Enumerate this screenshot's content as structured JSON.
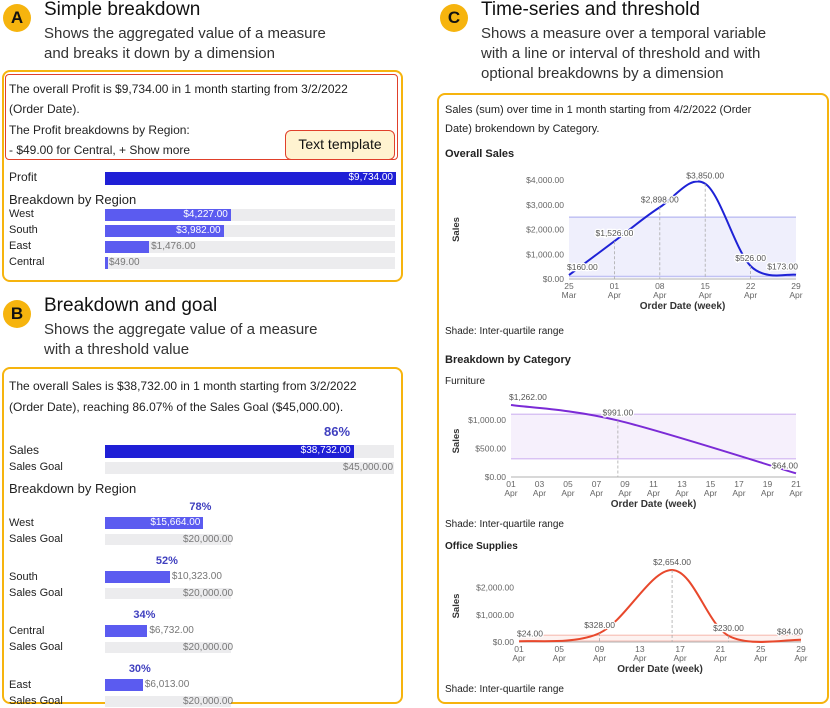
{
  "colors": {
    "accent": "#F6B40E",
    "bar_main": "#1F1FD6",
    "bar_sub": "#5B5BF0",
    "template_border": "#E0402A",
    "line_total": "#1E22D6",
    "line_furniture": "#7B2BD6",
    "line_office": "#E8482C"
  },
  "section_a": {
    "badge": "A",
    "title": "Simple breakdown",
    "desc1": "Shows the aggregated value of a measure",
    "desc2": "and breaks it down by a dimension",
    "text1": "The overall Profit is $9,734.00 in 1 month starting from 3/2/2022",
    "text2": "(Order Date).",
    "text3": "The Profit breakdowns by Region:",
    "text4": "- $49.00 for Central,   +  Show more",
    "template_label": "Text template",
    "measure_label": "Profit",
    "measure_value": "$9,734.00",
    "breakdown_title": "Breakdown by Region",
    "regions": [
      {
        "name": "West",
        "value": "$4,227.00",
        "frac": 0.434
      },
      {
        "name": "South",
        "value": "$3,982.00",
        "frac": 0.409
      },
      {
        "name": "East",
        "value": "$1,476.00",
        "frac": 0.152
      },
      {
        "name": "Central",
        "value": "$49.00",
        "frac": 0.005
      }
    ]
  },
  "section_b": {
    "badge": "B",
    "title": "Breakdown and goal",
    "desc1": "Shows the aggregate value of a measure",
    "desc2": "with a threshold value",
    "text1": "The overall Sales is $38,732.00 in 1 month starting from 3/2/2022",
    "text2": "(Order Date), reaching 86.07% of the Sales Goal ($45,000.00).",
    "overall_pct": "86%",
    "overall_frac": 0.8607,
    "sales_label": "Sales",
    "sales_value": "$38,732.00",
    "goal_label": "Sales Goal",
    "goal_value": "$45,000.00",
    "breakdown_title": "Breakdown by Region",
    "regions": [
      {
        "name": "West",
        "pct": "78%",
        "frac": 0.783,
        "value": "$15,664.00",
        "goal_label": "Sales Goal",
        "goal": "$20,000.00"
      },
      {
        "name": "South",
        "pct": "52%",
        "frac": 0.516,
        "value": "$10,323.00",
        "goal_label": "Sales Goal",
        "goal": "$20,000.00"
      },
      {
        "name": "Central",
        "pct": "34%",
        "frac": 0.337,
        "value": "$6,732.00",
        "goal_label": "Sales Goal",
        "goal": "$20,000.00"
      },
      {
        "name": "East",
        "pct": "30%",
        "frac": 0.301,
        "value": "$6,013.00",
        "goal_label": "Sales Goal",
        "goal": "$20,000.00"
      }
    ]
  },
  "section_c": {
    "badge": "C",
    "title": "Time-series and threshold",
    "desc1": "Shows a measure over a temporal variable",
    "desc2": "with a line or interval of threshold and with",
    "desc3": "optional breakdowns by a dimension",
    "text1": "Sales (sum) over time in 1 month starting from 4/2/2022 (Order",
    "text2": "Date) brokendown by Category.",
    "overall_title": "Overall Sales",
    "shade_note": "Shade: Inter-quartile range",
    "breakdown_title": "Breakdown by Category",
    "x_title": "Order Date (week)"
  },
  "chart_data": [
    {
      "type": "line",
      "title": "Overall Sales",
      "xlabel": "Order Date (week)",
      "ylabel": "Sales",
      "ylim": [
        0,
        4000
      ],
      "yticks": [
        "$4,000.00",
        "$3,000.00",
        "$2,000.00",
        "$1,000.00",
        "$0.00"
      ],
      "ytick_values": [
        4000,
        3000,
        2000,
        1000,
        0
      ],
      "x": [
        0,
        1,
        2,
        3,
        4,
        5
      ],
      "xlim": [
        0,
        5
      ],
      "xtick_labels": [
        [
          "25",
          "Mar"
        ],
        [
          "01",
          "Apr"
        ],
        [
          "08",
          "Apr"
        ],
        [
          "15",
          "Apr"
        ],
        [
          "22",
          "Apr"
        ],
        [
          "29",
          "Apr"
        ]
      ],
      "values": [
        160,
        1526,
        2898,
        3850,
        526,
        173
      ],
      "labels": [
        "$160.00",
        "$1,526.00",
        "$2,898.00",
        "$3,850.00",
        "$526.00",
        "$173.00"
      ],
      "label_rows": [
        1,
        1,
        1,
        1,
        1,
        1
      ],
      "iqr": [
        100,
        2500
      ]
    },
    {
      "type": "line",
      "title": "Furniture",
      "xlabel": "Order Date (week)",
      "ylabel": "Sales",
      "ylim": [
        0,
        1262
      ],
      "yticks": [
        "$1,000.00",
        "$500.00",
        "$0.00"
      ],
      "ytick_values": [
        1000,
        500,
        0
      ],
      "x": [
        0,
        3.75,
        10
      ],
      "xlim": [
        0,
        10
      ],
      "xtick_labels": [
        [
          "01",
          "Apr"
        ],
        [
          "03",
          "Apr"
        ],
        [
          "05",
          "Apr"
        ],
        [
          "07",
          "Apr"
        ],
        [
          "09",
          "Apr"
        ],
        [
          "11",
          "Apr"
        ],
        [
          "13",
          "Apr"
        ],
        [
          "15",
          "Apr"
        ],
        [
          "17",
          "Apr"
        ],
        [
          "19",
          "Apr"
        ],
        [
          "21",
          "Apr"
        ]
      ],
      "values": [
        1262,
        991,
        64
      ],
      "labels": [
        "$1,262.00",
        "$991.00",
        "$64.00"
      ],
      "iqr": [
        320,
        1100
      ]
    },
    {
      "type": "line",
      "title": "Office Supplies",
      "xlabel": "Order Date (week)",
      "ylabel": "Sales",
      "ylim": [
        0,
        2654
      ],
      "yticks": [
        "$2,000.00",
        "$1,000.00",
        "$0.00"
      ],
      "ytick_values": [
        2000,
        1000,
        0
      ],
      "x": [
        0,
        2,
        3.8,
        5.2,
        7
      ],
      "xlim": [
        0,
        7
      ],
      "xtick_labels": [
        [
          "01",
          "Apr"
        ],
        [
          "05",
          "Apr"
        ],
        [
          "09",
          "Apr"
        ],
        [
          "13",
          "Apr"
        ],
        [
          "17",
          "Apr"
        ],
        [
          "21",
          "Apr"
        ],
        [
          "25",
          "Apr"
        ],
        [
          "29",
          "Apr"
        ]
      ],
      "values": [
        24,
        328,
        2654,
        230,
        84
      ],
      "labels": [
        "$24.00",
        "$328.00",
        "$2,654.00",
        "$230.00",
        "$84.00"
      ],
      "iqr": [
        30,
        250
      ]
    }
  ]
}
